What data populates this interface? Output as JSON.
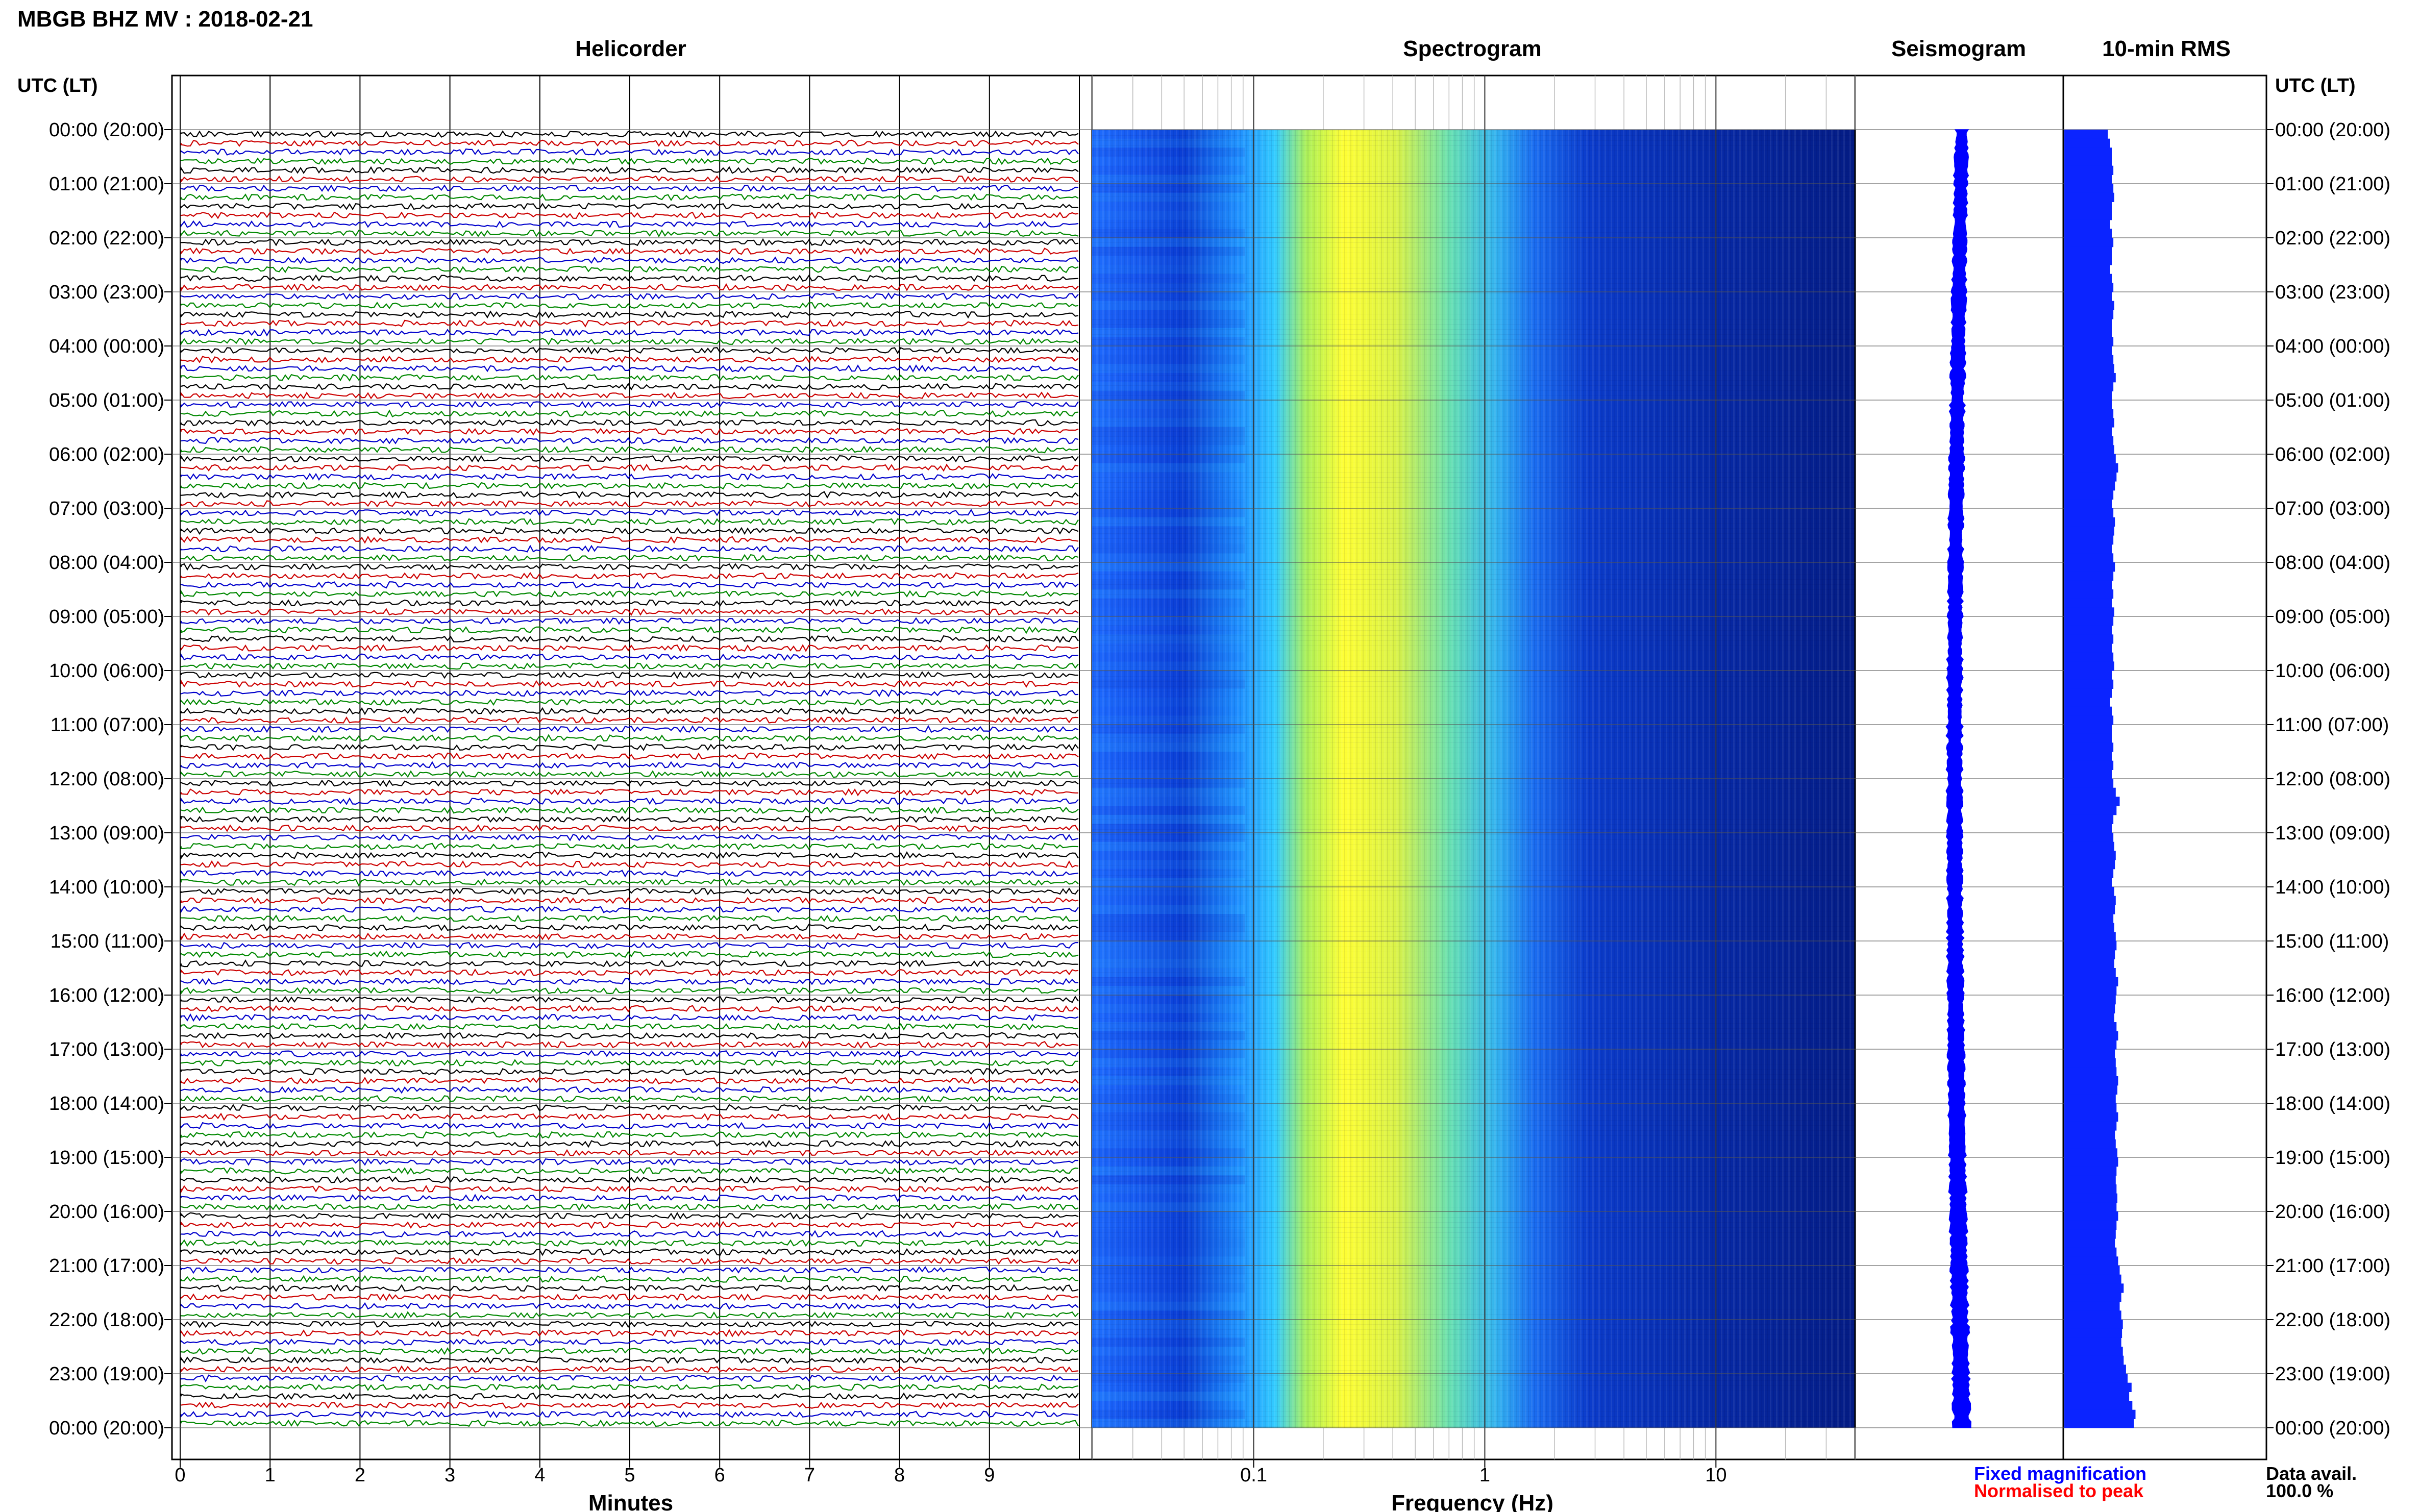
{
  "header": {
    "station_title": "MBGB BHZ MV : 2018-02-21",
    "panel_titles": {
      "helicorder": "Helicorder",
      "spectrogram": "Spectrogram",
      "seismogram": "Seismogram",
      "rms": "10-min RMS"
    },
    "left_axis_title": "UTC (LT)",
    "right_axis_title": "UTC (LT)"
  },
  "axes": {
    "hour_labels": [
      "00:00 (20:00)",
      "01:00 (21:00)",
      "02:00 (22:00)",
      "03:00 (23:00)",
      "04:00 (00:00)",
      "05:00 (01:00)",
      "06:00 (02:00)",
      "07:00 (03:00)",
      "08:00 (04:00)",
      "09:00 (05:00)",
      "10:00 (06:00)",
      "11:00 (07:00)",
      "12:00 (08:00)",
      "13:00 (09:00)",
      "14:00 (10:00)",
      "15:00 (11:00)",
      "16:00 (12:00)",
      "17:00 (13:00)",
      "18:00 (14:00)",
      "19:00 (15:00)",
      "20:00 (16:00)",
      "21:00 (17:00)",
      "22:00 (18:00)",
      "23:00 (19:00)",
      "00:00 (20:00)"
    ],
    "minutes_ticks": [
      "0",
      "1",
      "2",
      "3",
      "4",
      "5",
      "6",
      "7",
      "8",
      "9"
    ],
    "minutes_label": "Minutes",
    "frequency_ticks": [
      "0.1",
      "1",
      "10"
    ],
    "frequency_label": "Frequency (Hz)"
  },
  "legend": {
    "fixed_magnification": "Fixed magnification",
    "normalised_to_peak": "Normalised to peak",
    "data_avail_label": "Data avail.",
    "data_avail_value": "100.0 %"
  },
  "colors": {
    "trace_cycle": [
      "#000000",
      "#cc0000",
      "#0000cc",
      "#008800"
    ],
    "fixed_magnification": "#0000ff",
    "normalised_to_peak": "#ff0000",
    "spectrogram_low": "#00008b",
    "spectrogram_high": "#ffff00"
  },
  "chart_data": {
    "type": "heatmap",
    "date": "2018-02-21",
    "hours_utc": 24,
    "helicorder": {
      "x_range_minutes": [
        0,
        10
      ],
      "rows_per_hour": 6,
      "total_rows": 144
    },
    "spectrogram": {
      "xscale": "log",
      "xlim_hz": [
        0.02,
        40
      ],
      "peak_band_hz": [
        0.2,
        0.5
      ]
    },
    "rms_10min_relative": [
      0.55,
      0.58,
      0.6,
      0.6,
      0.62,
      0.6,
      0.62,
      0.63,
      0.6,
      0.6,
      0.58,
      0.6,
      0.62,
      0.6,
      0.6,
      0.58,
      0.6,
      0.62,
      0.6,
      0.63,
      0.62,
      0.6,
      0.6,
      0.62,
      0.6,
      0.62,
      0.63,
      0.65,
      0.62,
      0.6,
      0.6,
      0.62,
      0.63,
      0.6,
      0.62,
      0.63,
      0.65,
      0.68,
      0.66,
      0.64,
      0.62,
      0.6,
      0.62,
      0.64,
      0.63,
      0.62,
      0.6,
      0.62,
      0.64,
      0.62,
      0.6,
      0.62,
      0.6,
      0.63,
      0.62,
      0.6,
      0.62,
      0.6,
      0.62,
      0.63,
      0.6,
      0.62,
      0.6,
      0.58,
      0.6,
      0.62,
      0.6,
      0.6,
      0.62,
      0.6,
      0.62,
      0.6,
      0.62,
      0.65,
      0.7,
      0.66,
      0.62,
      0.6,
      0.62,
      0.63,
      0.65,
      0.64,
      0.62,
      0.6,
      0.63,
      0.65,
      0.64,
      0.62,
      0.63,
      0.65,
      0.66,
      0.64,
      0.63,
      0.65,
      0.68,
      0.66,
      0.65,
      0.64,
      0.63,
      0.66,
      0.68,
      0.66,
      0.64,
      0.65,
      0.66,
      0.68,
      0.67,
      0.65,
      0.66,
      0.68,
      0.66,
      0.64,
      0.65,
      0.67,
      0.68,
      0.66,
      0.65,
      0.66,
      0.67,
      0.66,
      0.68,
      0.66,
      0.65,
      0.64,
      0.66,
      0.68,
      0.7,
      0.72,
      0.75,
      0.72,
      0.7,
      0.72,
      0.74,
      0.73,
      0.72,
      0.74,
      0.75,
      0.78,
      0.8,
      0.85,
      0.82,
      0.86,
      0.9,
      0.88
    ]
  }
}
